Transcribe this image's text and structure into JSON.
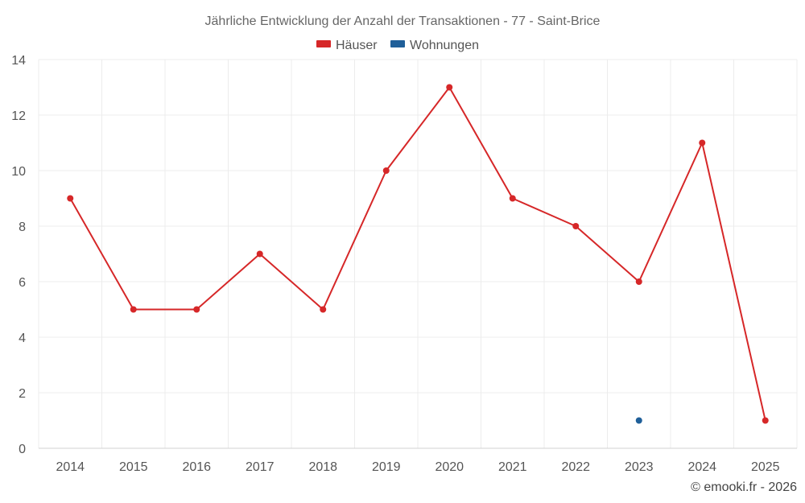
{
  "chart_data": {
    "type": "line",
    "title": "Jährliche Entwicklung der Anzahl der Transaktionen - 77 - Saint-Brice",
    "categories": [
      "2014",
      "2015",
      "2016",
      "2017",
      "2018",
      "2019",
      "2020",
      "2021",
      "2022",
      "2023",
      "2024",
      "2025"
    ],
    "series": [
      {
        "name": "Häuser",
        "color": "#d62728",
        "values": [
          9,
          5,
          5,
          7,
          5,
          10,
          13,
          9,
          8,
          6,
          11,
          1
        ]
      },
      {
        "name": "Wohnungen",
        "color": "#1f5f99",
        "values": [
          null,
          null,
          null,
          null,
          null,
          null,
          null,
          null,
          null,
          1,
          null,
          null
        ]
      }
    ],
    "ylim": [
      0,
      14
    ],
    "yticks": [
      "0",
      "2",
      "4",
      "6",
      "8",
      "10",
      "12",
      "14"
    ],
    "grid": true,
    "legend_position": "top-center",
    "xlabel": "",
    "ylabel": ""
  },
  "credit": "© emooki.fr - 2026"
}
